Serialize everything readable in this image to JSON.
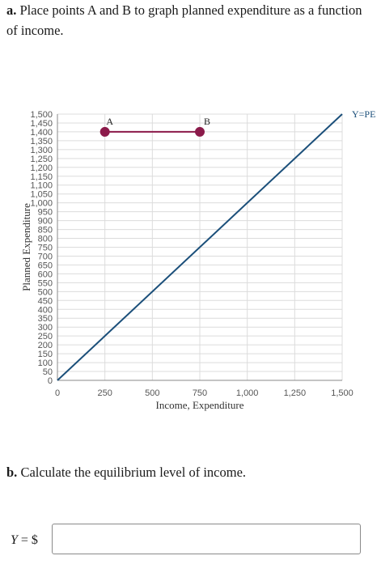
{
  "part_a": {
    "label": "a.",
    "text": "Place points A and B to graph planned expenditure as a function of income."
  },
  "part_b": {
    "label": "b.",
    "text": "Calculate the equilibrium level of income."
  },
  "answer": {
    "prefix_var": "Y",
    "prefix_rest": " = $",
    "value": ""
  },
  "colors": {
    "line": "#1b4f7a",
    "points": "#8b1a4a",
    "grid": "#dcdcdc"
  },
  "chart_data": {
    "type": "line",
    "xlabel": "Income, Expenditure",
    "ylabel": "Planned Expenditure",
    "xlim": [
      0,
      1500
    ],
    "ylim": [
      0,
      1500
    ],
    "x_ticks": [
      0,
      250,
      500,
      750,
      1000,
      1250,
      1500
    ],
    "x_tick_labels": [
      "0",
      "250",
      "500",
      "750",
      "1,000",
      "1,250",
      "1,500"
    ],
    "y_ticks": [
      0,
      50,
      100,
      150,
      200,
      250,
      300,
      350,
      400,
      450,
      500,
      550,
      600,
      650,
      700,
      750,
      800,
      850,
      900,
      950,
      1000,
      1050,
      1100,
      1150,
      1200,
      1250,
      1300,
      1350,
      1400,
      1450,
      1500
    ],
    "y_tick_labels": [
      "0",
      "50",
      "100",
      "150",
      "200",
      "250",
      "300",
      "350",
      "400",
      "450",
      "500",
      "550",
      "600",
      "650",
      "700",
      "750",
      "800",
      "850",
      "900",
      "950",
      "1,000",
      "1,050",
      "1,100",
      "1,150",
      "1,200",
      "1,250",
      "1,300",
      "1,350",
      "1,400",
      "1,450",
      "1,500"
    ],
    "grid": true,
    "series": [
      {
        "name": "Y=PE",
        "points": [
          [
            0,
            0
          ],
          [
            1500,
            1500
          ]
        ]
      }
    ],
    "points": [
      {
        "label": "A",
        "x": 250,
        "y": 1400
      },
      {
        "label": "B",
        "x": 750,
        "y": 1400
      }
    ]
  }
}
